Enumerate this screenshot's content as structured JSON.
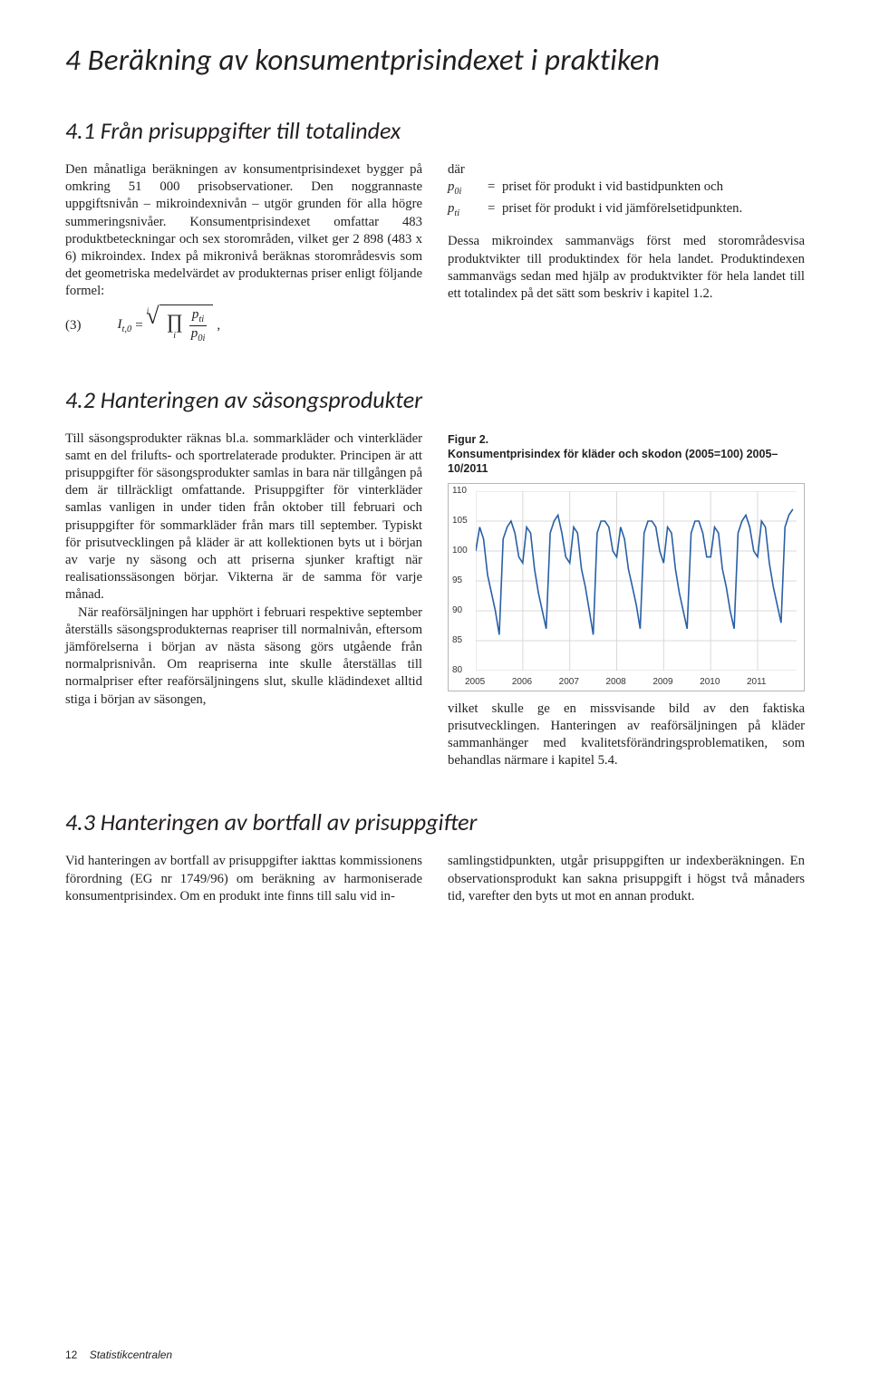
{
  "h1": "4   Beräkning av konsumentprisindexet i praktiken",
  "s41_title": "4.1  Från prisuppgifter till totalindex",
  "s41_left_p1": "Den månatliga beräkningen av konsumentprisindexet bygger på omkring 51 000 prisobservationer. Den noggrannaste uppgiftsnivån – mikroindexnivån – utgör grunden för alla högre summeringsnivåer. Konsumentprisindexet omfattar 483 produktbeteckningar och sex storområden, vilket ger 2 898 (483 x 6) mikroindex. Index på mikronivå beräknas storområdesvis som det geometriska medelvärdet av produkternas priser enligt följande formel:",
  "formula": {
    "number": "(3)",
    "lhs": "I",
    "lhs_sub": "t,0",
    "root_deg": "i",
    "num": "p",
    "num_sub": "ti",
    "den": "p",
    "den_sub": "0i",
    "tail": ","
  },
  "where_intro": "där",
  "where": [
    {
      "sym": "p",
      "sub": "0i",
      "def": "priset för produkt i vid bastidpunkten och"
    },
    {
      "sym": "p",
      "sub": "ti",
      "def": "priset för produkt i vid jämförelsetidpunkten."
    }
  ],
  "s41_right_p2": "Dessa mikroindex sammanvägs först med storområdesvisa produktvikter till produktindex för hela landet. Produktindexen sammanvägs sedan med hjälp av produktvikter för hela landet till ett totalindex på det sätt som beskriv i kapitel 1.2.",
  "s42_title": "4.2  Hanteringen av säsongsprodukter",
  "s42_left_p1": "Till säsongsprodukter räknas bl.a. sommarkläder och vinterkläder samt en del frilufts- och sportrelaterade produkter. Principen är att prisuppgifter för säsongsprodukter samlas in bara när tillgången på dem är tillräckligt omfattande. Prisuppgifter för vinterkläder samlas vanligen in under tiden från oktober till februari och prisuppgifter för sommarkläder från mars till september. Typiskt för prisutvecklingen på kläder är att kollektionen byts ut i början av varje ny säsong och att priserna sjunker kraftigt när realisationssäsongen börjar. Vikterna är de samma för varje månad.",
  "s42_left_p2": "När reaförsäljningen har upphört i februari respektive september återställs säsongsprodukternas reapriser till normalnivån, eftersom jämförelserna i början av nästa säsong görs utgående från normalprisnivån. Om reapriserna inte skulle återställas till normalpriser efter reaförsäljningens slut, skulle klädindexet alltid stiga i början av säsongen,",
  "fig2_label": "Figur 2.",
  "fig2_caption": "Konsumentprisindex för kläder och skodon (2005=100) 2005–10/2011",
  "s42_right_p1": "vilket skulle ge en missvisande bild av den faktiska prisutvecklingen. Hanteringen av reaförsäljningen på kläder sammanhänger med kvalitetsförändringsproblematiken, som behandlas närmare i kapitel 5.4.",
  "s43_title": "4.3  Hanteringen av bortfall av prisuppgifter",
  "s43_left_p1": "Vid hanteringen av bortfall av prisuppgifter iakttas kommissionens förordning (EG nr 1749/96) om beräkning av harmoniserade konsumentprisindex. Om en produkt inte finns till salu vid in-",
  "s43_right_p1": "samlingstidpunkten, utgår prisuppgiften ur indexberäkningen. En observationsprodukt kan sakna prisuppgift i högst två månaders tid, varefter den byts ut mot en annan produkt.",
  "footer_page": "12",
  "footer_source": "Statistikcentralen",
  "chart": {
    "type": "line",
    "background_color": "#ffffff",
    "border_color": "#b6b6b6",
    "grid_color": "#d9d9d9",
    "line_color": "#295fa6",
    "line_width": 1.6,
    "ylim": [
      80,
      110
    ],
    "ytick_step": 5,
    "yticks": [
      80,
      85,
      90,
      95,
      100,
      105,
      110
    ],
    "xlim": [
      2005,
      2011.83
    ],
    "xtick_step": 1,
    "xticks": [
      2005,
      2006,
      2007,
      2008,
      2009,
      2010,
      2011
    ],
    "label_fontsize": 10,
    "values": [
      100,
      104,
      102,
      96,
      93,
      90,
      86,
      102,
      104,
      105,
      103,
      99,
      98,
      104,
      103,
      97,
      93,
      90,
      87,
      103,
      105,
      106,
      103,
      99,
      98,
      104,
      103,
      97,
      94,
      90,
      86,
      103,
      105,
      105,
      104,
      100,
      99,
      104,
      102,
      97,
      94,
      91,
      87,
      103,
      105,
      105,
      104,
      100,
      98,
      104,
      103,
      97,
      93,
      90,
      87,
      103,
      105,
      105,
      103,
      99,
      99,
      104,
      103,
      97,
      94,
      90,
      87,
      103,
      105,
      106,
      104,
      100,
      99,
      105,
      104,
      98,
      94,
      91,
      88,
      104,
      106,
      107
    ]
  }
}
